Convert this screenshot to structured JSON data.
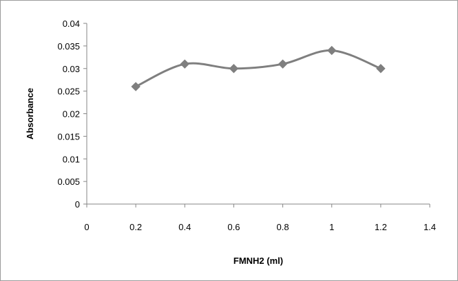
{
  "chart_data": {
    "type": "line",
    "title": "",
    "xlabel": "FMNH2 (ml)",
    "ylabel": "Absorbance",
    "xlim": [
      0,
      1.4
    ],
    "ylim": [
      0,
      0.04
    ],
    "xticks": [
      "0",
      "0.2",
      "0.4",
      "0.6",
      "0.8",
      "1",
      "1.2",
      "1.4"
    ],
    "yticks": [
      "0",
      "0.005",
      "0.01",
      "0.015",
      "0.02",
      "0.025",
      "0.03",
      "0.035",
      "0.04"
    ],
    "grid": false,
    "legend": "none",
    "line_color": "#7f7f7f",
    "marker": "diamond",
    "series": [
      {
        "x": [
          0.2,
          0.4,
          0.6,
          0.8,
          1.0,
          1.2
        ],
        "y": [
          0.026,
          0.031,
          0.03,
          0.031,
          0.034,
          0.03
        ]
      }
    ]
  }
}
